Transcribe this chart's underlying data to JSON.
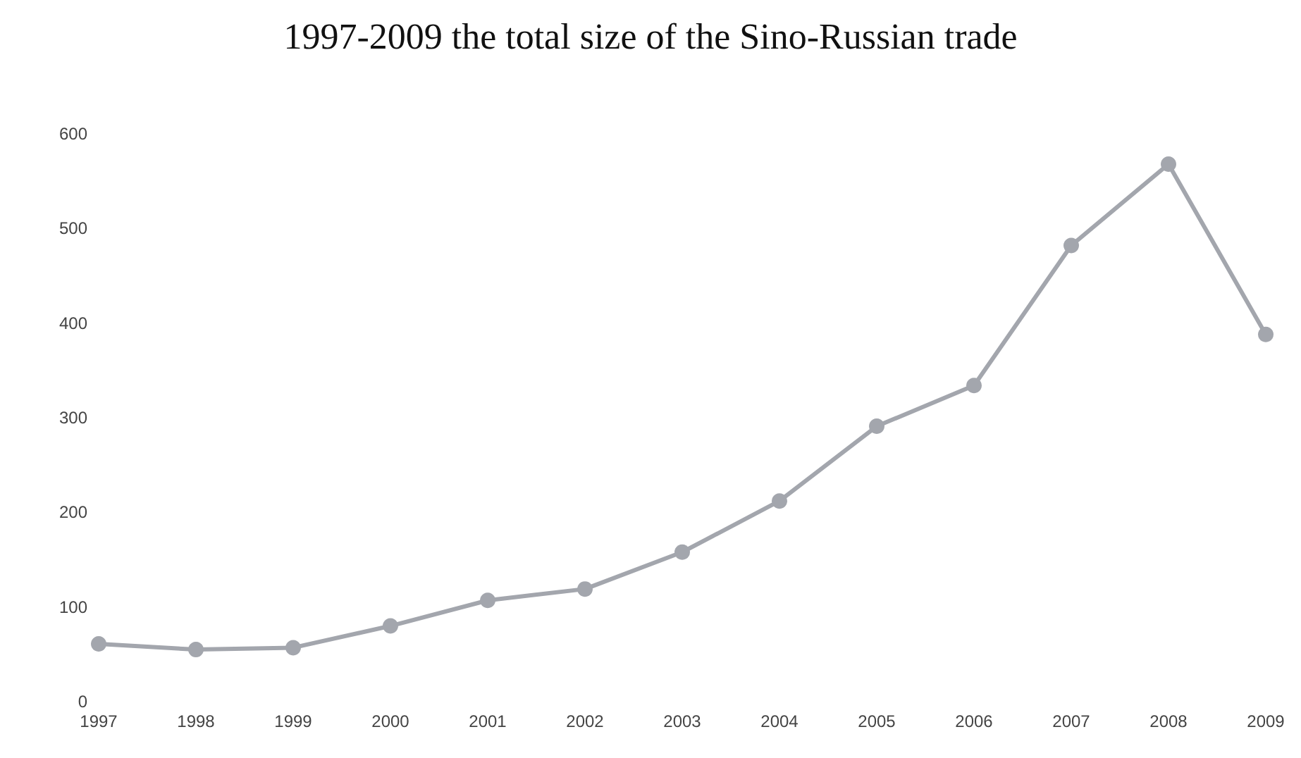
{
  "chart_data": {
    "type": "line",
    "title": "1997-2009 the total size of the Sino-Russian trade",
    "categories": [
      "1997",
      "1998",
      "1999",
      "2000",
      "2001",
      "2002",
      "2003",
      "2004",
      "2005",
      "2006",
      "2007",
      "2008",
      "2009"
    ],
    "series": [
      {
        "color": "#a3a6ad",
        "values": [
          61,
          55,
          57,
          80,
          107,
          119,
          158,
          212,
          291,
          334,
          482,
          568,
          388
        ]
      }
    ],
    "ylim": [
      0,
      600
    ],
    "yticks": [
      0,
      100,
      200,
      300,
      400,
      500,
      600
    ],
    "marker": "circle",
    "line_style": "solid"
  }
}
